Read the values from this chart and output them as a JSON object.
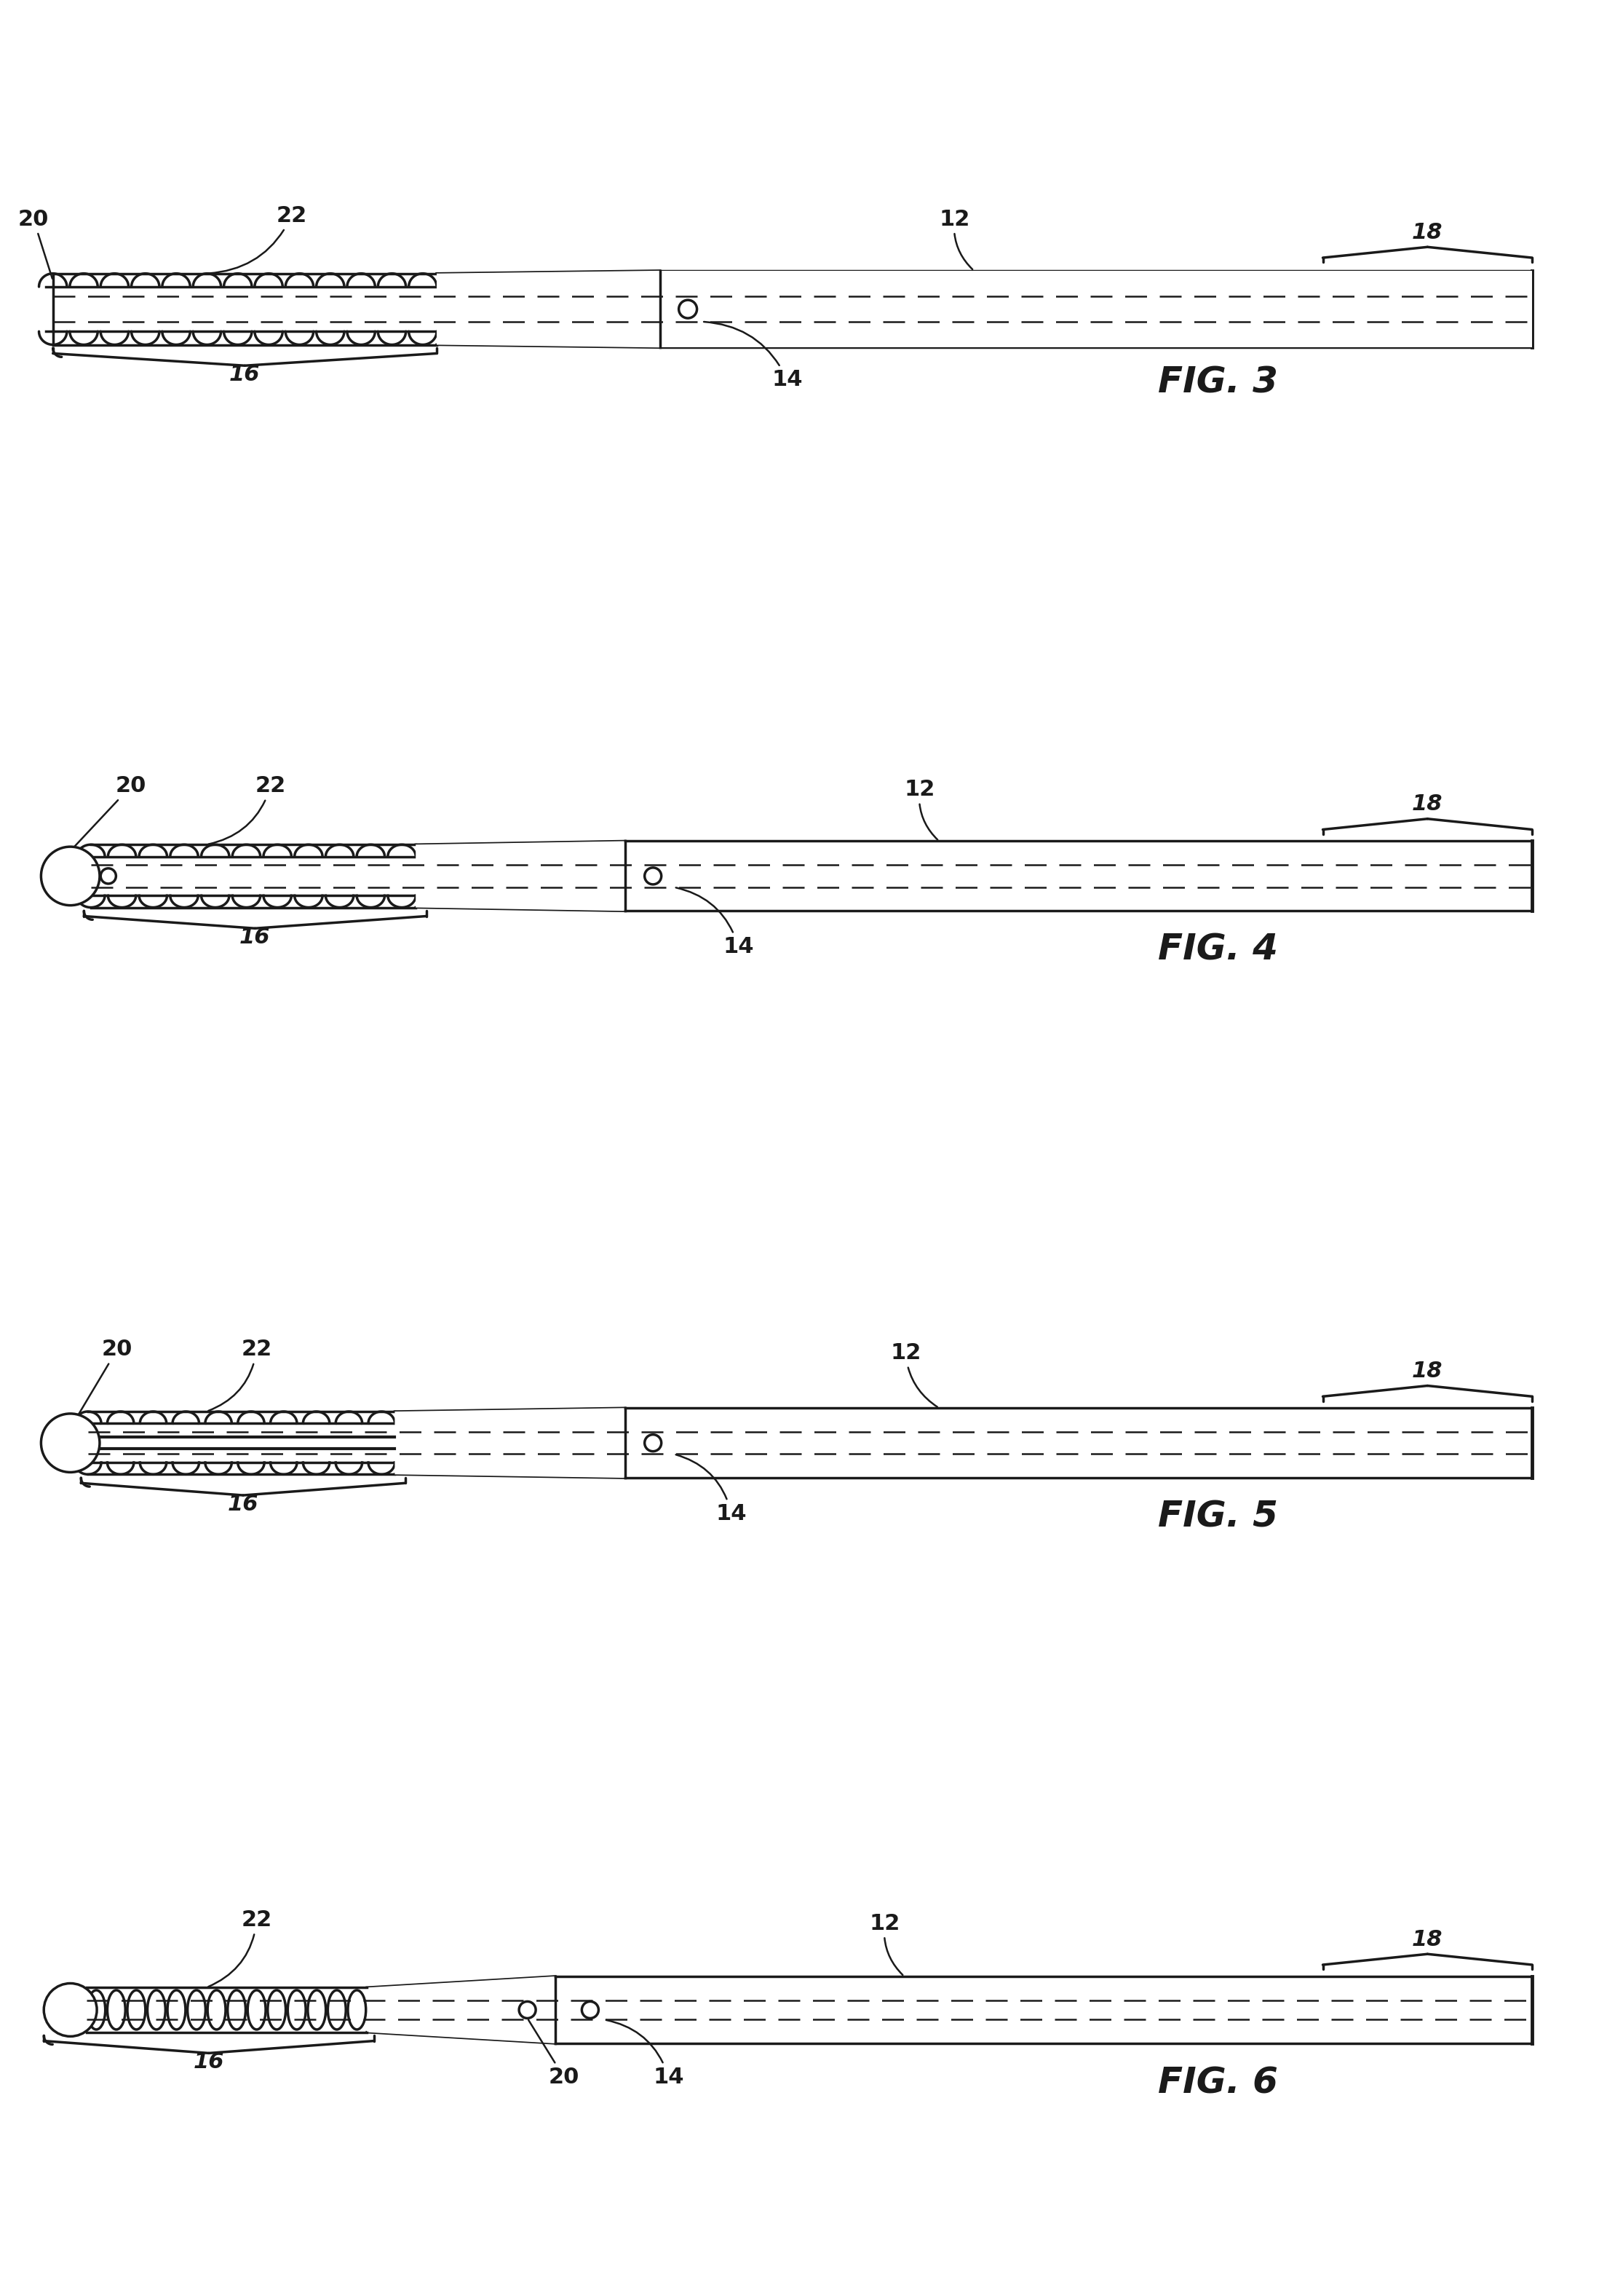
{
  "fig_labels": [
    "FIG. 3",
    "FIG. 4",
    "FIG. 5",
    "FIG. 6"
  ],
  "background_color": "#ffffff",
  "line_color": "#1a1a1a",
  "fig3": {
    "n_coils": 13,
    "has_ball": false,
    "sensor_in_coil": false,
    "sensor_at_junction": true,
    "coil_rows": 2
  },
  "fig4": {
    "n_coils": 11,
    "has_ball": true,
    "sensor_in_coil": true,
    "sensor_at_junction": true,
    "coil_rows": 2
  },
  "fig5": {
    "n_coils": 10,
    "has_ball": true,
    "sensor_in_coil": false,
    "sensor_at_junction": true,
    "coil_rows": 2
  },
  "fig6": {
    "n_coils": 14,
    "has_ball": true,
    "sensor_in_coil": false,
    "sensor_after_coil": true,
    "coil_rows": 1
  }
}
